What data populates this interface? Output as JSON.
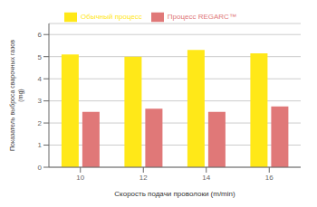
{
  "chart_data": {
    "type": "bar",
    "categories": [
      "10",
      "12",
      "14",
      "16"
    ],
    "series": [
      {
        "name": "Обычный процесс",
        "color": "#FFE818",
        "values": [
          5.1,
          5.0,
          5.3,
          5.15
        ]
      },
      {
        "name": "Процесс REGARC™",
        "color": "#E07878",
        "values": [
          2.5,
          2.65,
          2.5,
          2.75
        ]
      }
    ],
    "xlabel": "Скорость подачи проволоки (m/min)",
    "ylabel": "Показатель выброса сварочных газов\n(mg)",
    "ylim": [
      0,
      6.5
    ],
    "yticks": [
      0,
      1,
      2,
      3,
      4,
      5,
      6
    ],
    "grid": true,
    "legend": "top"
  }
}
